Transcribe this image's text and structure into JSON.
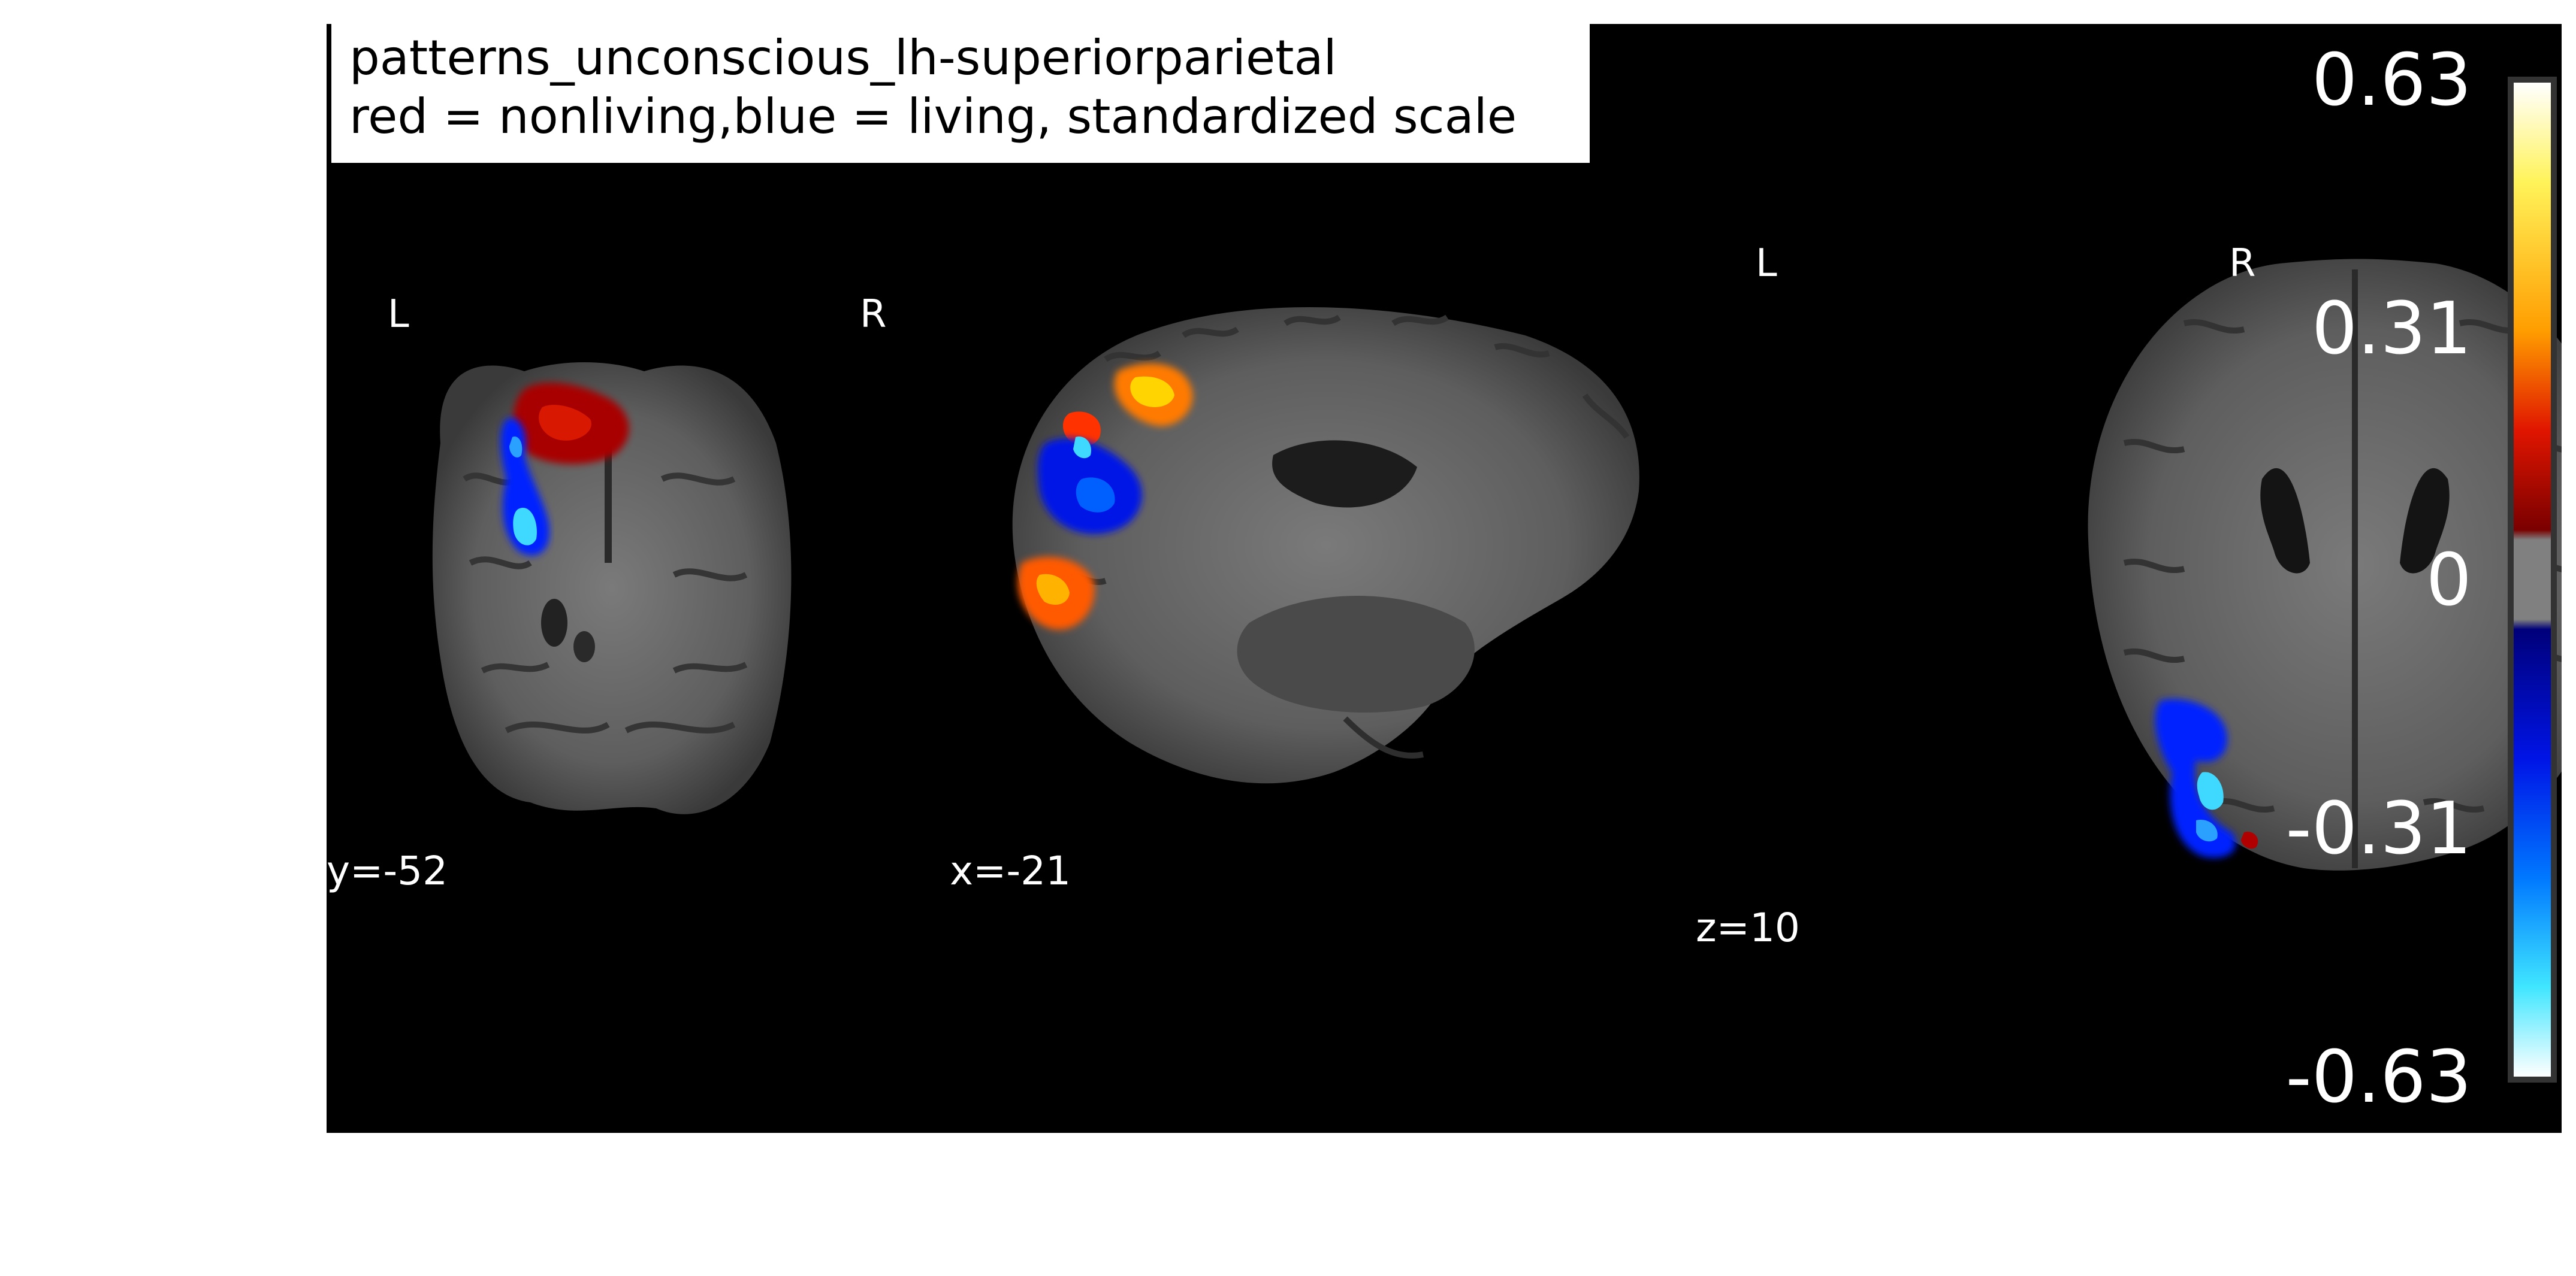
{
  "title": {
    "line1": "patterns_unconscious_lh-superiorparietal",
    "line2": "red = nonliving,blue = living, standardized scale"
  },
  "views": [
    {
      "name": "coronal",
      "coordinate": "y=-52",
      "orientation_left": "L",
      "orientation_right": "R"
    },
    {
      "name": "sagittal",
      "coordinate": "x=-21"
    },
    {
      "name": "axial",
      "coordinate": "z=10",
      "orientation_left": "L",
      "orientation_right": "R"
    }
  ],
  "colorbar": {
    "ticks": [
      "0.63",
      "0.31",
      "0",
      "-0.31",
      "-0.63"
    ],
    "max": 0.63,
    "min": -0.63,
    "colors": {
      "positive_low": "#8b0000",
      "positive_mid": "#ff2a00",
      "positive_high": "#ffe600",
      "positive_top": "#ffffff",
      "zero": "#808080",
      "negative_low": "#00008b",
      "negative_mid": "#0050ff",
      "negative_high": "#00e5ff",
      "negative_top": "#ffffff"
    }
  }
}
